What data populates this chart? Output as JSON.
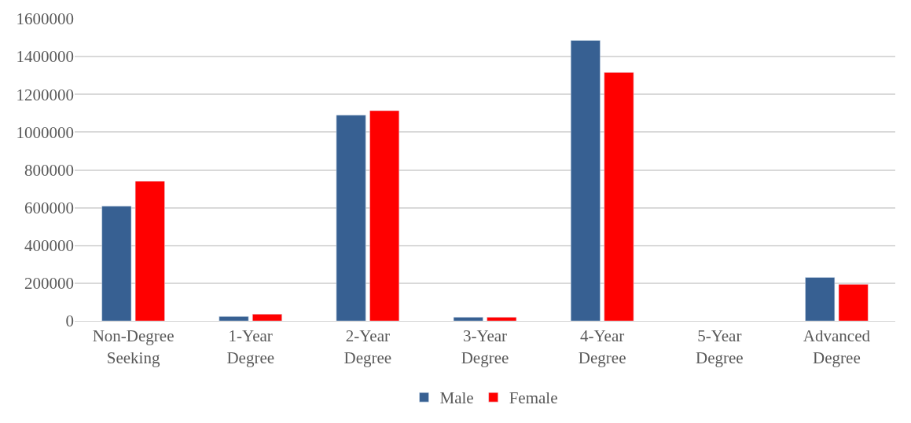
{
  "chart_data": {
    "type": "bar",
    "categories": [
      "Non-Degree Seeking",
      "1-Year Degree",
      "2-Year Degree",
      "3-Year Degree",
      "4-Year Degree",
      "5-Year Degree",
      "Advanced Degree"
    ],
    "series": [
      {
        "name": "Male",
        "color": "#376092",
        "values": [
          608000,
          24000,
          1090000,
          20000,
          1486000,
          null,
          231000
        ]
      },
      {
        "name": "Female",
        "color": "#ff0000",
        "values": [
          740000,
          36000,
          1114000,
          20000,
          1316000,
          null,
          194000
        ]
      }
    ],
    "ylim": [
      0,
      1600000
    ],
    "yticks": [
      0,
      200000,
      400000,
      600000,
      800000,
      1000000,
      1200000,
      1400000,
      1600000
    ],
    "grid": "y",
    "legend": "bottom"
  }
}
